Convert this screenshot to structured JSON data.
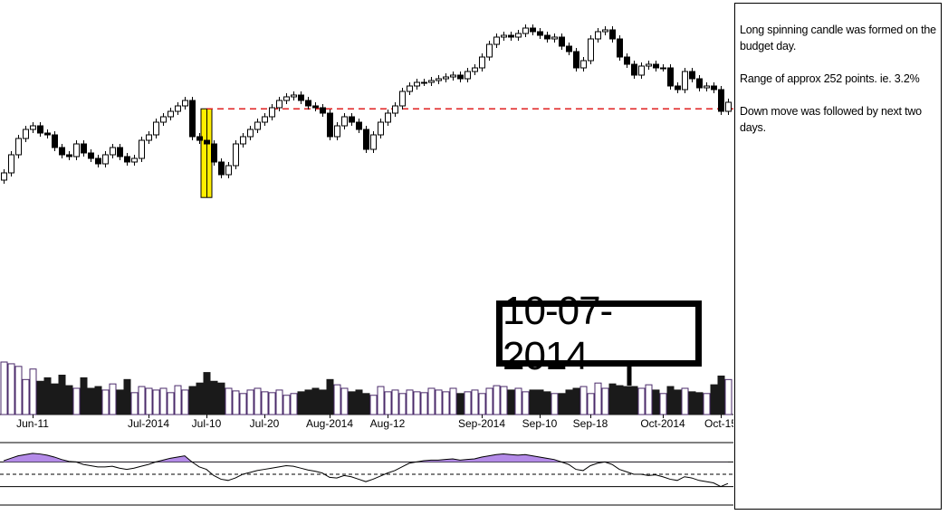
{
  "chart_data": {
    "type": "candlestick",
    "categories": [
      null,
      null,
      null,
      null,
      "Jun-11",
      null,
      null,
      null,
      null,
      null,
      null,
      null,
      null,
      null,
      null,
      null,
      null,
      null,
      null,
      null,
      "Jul-2014",
      null,
      null,
      null,
      null,
      null,
      null,
      null,
      "Jul-10",
      null,
      null,
      null,
      null,
      null,
      null,
      null,
      "Jul-20",
      null,
      null,
      null,
      null,
      null,
      null,
      null,
      null,
      "Aug-2014",
      null,
      null,
      null,
      null,
      null,
      null,
      null,
      "Aug-12",
      null,
      null,
      null,
      null,
      null,
      null,
      null,
      null,
      null,
      null,
      null,
      null,
      "Sep-2014",
      null,
      null,
      null,
      null,
      null,
      null,
      null,
      "Sep-10",
      null,
      null,
      null,
      null,
      null,
      null,
      "Sep-18",
      null,
      null,
      null,
      null,
      null,
      null,
      null,
      null,
      null,
      "Oct-2014",
      null,
      null,
      null,
      null,
      null,
      null,
      null,
      "Oct-15",
      null
    ],
    "candles": [
      [
        7540,
        7570,
        7530,
        7560
      ],
      [
        7560,
        7620,
        7550,
        7610
      ],
      [
        7610,
        7665,
        7600,
        7655
      ],
      [
        7655,
        7690,
        7645,
        7680
      ],
      [
        7680,
        7700,
        7670,
        7690
      ],
      [
        7690,
        7700,
        7660,
        7670
      ],
      [
        7670,
        7680,
        7655,
        7665
      ],
      [
        7665,
        7675,
        7620,
        7630
      ],
      [
        7630,
        7640,
        7600,
        7610
      ],
      [
        7610,
        7620,
        7595,
        7605
      ],
      [
        7605,
        7650,
        7595,
        7640
      ],
      [
        7640,
        7650,
        7605,
        7615
      ],
      [
        7615,
        7625,
        7590,
        7600
      ],
      [
        7600,
        7610,
        7575,
        7585
      ],
      [
        7585,
        7620,
        7575,
        7610
      ],
      [
        7610,
        7640,
        7600,
        7630
      ],
      [
        7630,
        7640,
        7595,
        7605
      ],
      [
        7605,
        7615,
        7580,
        7590
      ],
      [
        7590,
        7610,
        7580,
        7600
      ],
      [
        7600,
        7660,
        7590,
        7650
      ],
      [
        7650,
        7675,
        7640,
        7665
      ],
      [
        7665,
        7710,
        7655,
        7700
      ],
      [
        7700,
        7725,
        7690,
        7715
      ],
      [
        7715,
        7740,
        7705,
        7730
      ],
      [
        7730,
        7755,
        7720,
        7745
      ],
      [
        7745,
        7770,
        7735,
        7760
      ],
      [
        7760,
        7770,
        7650,
        7660
      ],
      [
        7660,
        7670,
        7640,
        7650
      ],
      [
        7650,
        7737,
        7492,
        7640
      ],
      [
        7640,
        7650,
        7580,
        7590
      ],
      [
        7590,
        7600,
        7545,
        7555
      ],
      [
        7555,
        7590,
        7545,
        7580
      ],
      [
        7580,
        7650,
        7570,
        7640
      ],
      [
        7640,
        7670,
        7630,
        7660
      ],
      [
        7660,
        7690,
        7650,
        7680
      ],
      [
        7680,
        7710,
        7670,
        7700
      ],
      [
        7700,
        7725,
        7690,
        7715
      ],
      [
        7715,
        7750,
        7705,
        7740
      ],
      [
        7740,
        7770,
        7730,
        7760
      ],
      [
        7760,
        7780,
        7750,
        7770
      ],
      [
        7770,
        7785,
        7760,
        7775
      ],
      [
        7775,
        7785,
        7750,
        7760
      ],
      [
        7760,
        7770,
        7735,
        7745
      ],
      [
        7745,
        7755,
        7730,
        7740
      ],
      [
        7740,
        7750,
        7715,
        7725
      ],
      [
        7725,
        7735,
        7650,
        7660
      ],
      [
        7660,
        7700,
        7650,
        7690
      ],
      [
        7690,
        7725,
        7680,
        7715
      ],
      [
        7715,
        7725,
        7690,
        7700
      ],
      [
        7700,
        7710,
        7670,
        7680
      ],
      [
        7680,
        7690,
        7615,
        7625
      ],
      [
        7625,
        7675,
        7615,
        7665
      ],
      [
        7665,
        7710,
        7655,
        7700
      ],
      [
        7700,
        7735,
        7690,
        7725
      ],
      [
        7725,
        7755,
        7715,
        7745
      ],
      [
        7745,
        7795,
        7735,
        7785
      ],
      [
        7785,
        7810,
        7775,
        7800
      ],
      [
        7800,
        7820,
        7790,
        7810
      ],
      [
        7810,
        7820,
        7800,
        7810
      ],
      [
        7810,
        7825,
        7800,
        7815
      ],
      [
        7815,
        7830,
        7805,
        7820
      ],
      [
        7820,
        7835,
        7810,
        7825
      ],
      [
        7825,
        7840,
        7815,
        7830
      ],
      [
        7830,
        7840,
        7810,
        7820
      ],
      [
        7820,
        7850,
        7810,
        7840
      ],
      [
        7840,
        7860,
        7830,
        7850
      ],
      [
        7850,
        7890,
        7840,
        7880
      ],
      [
        7880,
        7925,
        7870,
        7915
      ],
      [
        7915,
        7945,
        7905,
        7935
      ],
      [
        7935,
        7950,
        7925,
        7940
      ],
      [
        7940,
        7950,
        7925,
        7935
      ],
      [
        7935,
        7955,
        7925,
        7945
      ],
      [
        7945,
        7970,
        7935,
        7960
      ],
      [
        7960,
        7970,
        7940,
        7950
      ],
      [
        7950,
        7960,
        7930,
        7940
      ],
      [
        7940,
        7950,
        7920,
        7930
      ],
      [
        7930,
        7945,
        7920,
        7935
      ],
      [
        7935,
        7945,
        7900,
        7910
      ],
      [
        7910,
        7920,
        7885,
        7895
      ],
      [
        7895,
        7905,
        7840,
        7850
      ],
      [
        7850,
        7880,
        7840,
        7870
      ],
      [
        7870,
        7940,
        7860,
        7930
      ],
      [
        7930,
        7960,
        7920,
        7950
      ],
      [
        7950,
        7965,
        7940,
        7955
      ],
      [
        7955,
        7965,
        7920,
        7930
      ],
      [
        7930,
        7940,
        7870,
        7880
      ],
      [
        7880,
        7890,
        7850,
        7860
      ],
      [
        7860,
        7870,
        7820,
        7830
      ],
      [
        7830,
        7865,
        7820,
        7855
      ],
      [
        7855,
        7870,
        7845,
        7860
      ],
      [
        7860,
        7870,
        7840,
        7850
      ],
      [
        7850,
        7860,
        7840,
        7850
      ],
      [
        7850,
        7860,
        7790,
        7800
      ],
      [
        7800,
        7810,
        7780,
        7790
      ],
      [
        7790,
        7850,
        7780,
        7840
      ],
      [
        7840,
        7850,
        7810,
        7820
      ],
      [
        7820,
        7830,
        7785,
        7795
      ],
      [
        7795,
        7810,
        7785,
        7800
      ],
      [
        7800,
        7810,
        7780,
        7790
      ],
      [
        7790,
        7800,
        7720,
        7730
      ],
      [
        7730,
        7765,
        7720,
        7755
      ]
    ],
    "ylim": [
      7450,
      8025
    ],
    "reference_line": 7737,
    "reference_color": "#e02020",
    "highlight_color": "#ffee00",
    "volume": [
      60,
      58,
      55,
      40,
      52,
      38,
      42,
      35,
      45,
      33,
      30,
      42,
      30,
      32,
      28,
      35,
      28,
      40,
      25,
      32,
      30,
      28,
      30,
      25,
      33,
      28,
      32,
      36,
      48,
      38,
      36,
      30,
      27,
      24,
      28,
      30,
      26,
      25,
      28,
      22,
      24,
      26,
      28,
      30,
      28,
      40,
      34,
      30,
      26,
      28,
      24,
      22,
      32,
      26,
      28,
      24,
      28,
      26,
      25,
      30,
      28,
      26,
      30,
      24,
      26,
      28,
      24,
      30,
      33,
      32,
      28,
      30,
      26,
      28,
      28,
      26,
      24,
      24,
      28,
      30,
      32,
      24,
      36,
      30,
      35,
      33,
      32,
      32,
      30,
      34,
      28,
      24,
      32,
      28,
      30,
      26,
      25,
      24,
      34,
      44,
      40
    ],
    "volume_ylim": [
      0,
      60
    ],
    "oscillator": [
      72,
      76,
      80,
      82,
      84,
      83,
      81,
      78,
      74,
      71,
      70,
      66,
      64,
      62,
      62,
      63,
      60,
      58,
      60,
      63,
      66,
      70,
      73,
      76,
      78,
      80,
      70,
      62,
      58,
      48,
      42,
      40,
      44,
      50,
      53,
      56,
      58,
      60,
      62,
      64,
      63,
      60,
      57,
      55,
      52,
      45,
      44,
      48,
      46,
      42,
      38,
      42,
      47,
      52,
      56,
      62,
      68,
      70,
      72,
      73,
      73,
      74,
      75,
      73,
      74,
      75,
      78,
      80,
      82,
      83,
      82,
      81,
      82,
      80,
      78,
      76,
      74,
      70,
      66,
      58,
      56,
      64,
      68,
      70,
      66,
      58,
      54,
      50,
      50,
      48,
      49,
      46,
      42,
      40,
      46,
      44,
      40,
      38,
      36,
      30,
      35
    ],
    "oscillator_ylim": [
      0,
      100
    ],
    "oscillator_levels": [
      70,
      50,
      30
    ],
    "oscillator_fill": "#b48be8"
  },
  "annotations": {
    "date_callout": "10-07-2014",
    "notes": [
      "Long spinning candle was formed on the budget day.",
      "Range of approx 252 points. ie. 3.2%",
      "Down move was followed by  next two days."
    ]
  }
}
